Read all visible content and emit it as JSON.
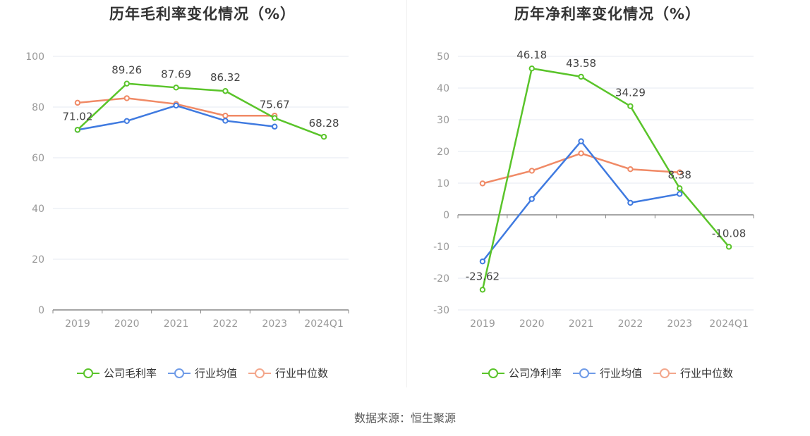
{
  "colors": {
    "company": "#5ac42a",
    "avg": "#3f7ae0",
    "median": "#f08a66",
    "grid": "#e6e8f0",
    "axis": "#888888"
  },
  "footer": {
    "source": "数据来源：恒生聚源"
  },
  "chart_data": [
    {
      "type": "line",
      "title": "历年毛利率变化情况（%）",
      "categories": [
        "2019",
        "2020",
        "2021",
        "2022",
        "2023",
        "2024Q1"
      ],
      "ylim": [
        0,
        100
      ],
      "yticks": [
        0,
        20,
        40,
        60,
        80,
        100
      ],
      "grid": true,
      "legend_position": "bottom",
      "series": [
        {
          "name": "公司毛利率",
          "key": "company",
          "values": [
            71.02,
            89.26,
            87.69,
            86.32,
            75.67,
            68.28
          ],
          "labels": [
            "71.02",
            "89.26",
            "87.69",
            "86.32",
            "75.67",
            "68.28"
          ]
        },
        {
          "name": "行业均值",
          "key": "avg",
          "values": [
            71.0,
            74.5,
            80.6,
            74.6,
            72.3,
            null
          ]
        },
        {
          "name": "行业中位数",
          "key": "median",
          "values": [
            81.7,
            83.5,
            81.2,
            76.6,
            76.6,
            null
          ]
        }
      ]
    },
    {
      "type": "line",
      "title": "历年净利率变化情况（%）",
      "categories": [
        "2019",
        "2020",
        "2021",
        "2022",
        "2023",
        "2024Q1"
      ],
      "ylim": [
        -30,
        50
      ],
      "yticks": [
        -30,
        -20,
        -10,
        0,
        10,
        20,
        30,
        40,
        50
      ],
      "grid": true,
      "legend_position": "bottom",
      "series": [
        {
          "name": "公司净利率",
          "key": "company",
          "values": [
            -23.62,
            46.18,
            43.58,
            34.29,
            8.38,
            -10.08
          ],
          "labels": [
            "-23.62",
            "46.18",
            "43.58",
            "34.29",
            "8.38",
            "-10.08"
          ]
        },
        {
          "name": "行业均值",
          "key": "avg",
          "values": [
            -14.7,
            5.0,
            23.2,
            3.8,
            6.6,
            null
          ]
        },
        {
          "name": "行业中位数",
          "key": "median",
          "values": [
            9.9,
            13.9,
            19.4,
            14.4,
            13.4,
            null
          ]
        }
      ]
    }
  ]
}
